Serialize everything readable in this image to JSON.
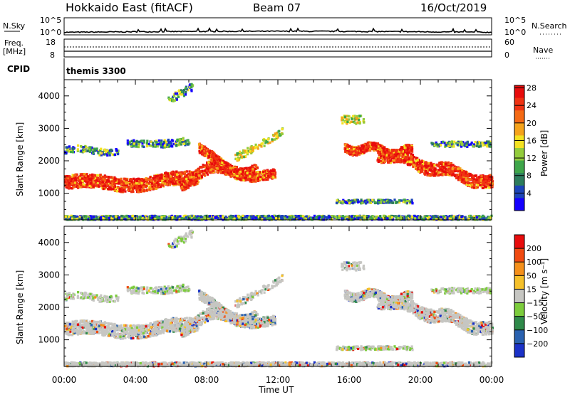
{
  "header": {
    "site": "Hokkaido East (fitACF)",
    "beam": "Beam 07",
    "date": "16/Oct/2019"
  },
  "noise_panel": {
    "left_label": "N.Sky",
    "right_label": "N.Search",
    "left_ticks": [
      "10^5",
      "10^0"
    ],
    "right_ticks": [
      "10^5",
      "10^0"
    ]
  },
  "freq_panel": {
    "left_label_line1": "Freq.",
    "left_label_line2": "[MHz]",
    "right_label": "Nave",
    "left_ticks": [
      "18",
      "8"
    ],
    "right_ticks": [
      "60",
      "0"
    ]
  },
  "cpid": {
    "label": "CPID",
    "value": "themis 3300"
  },
  "x_axis": {
    "label": "Time UT",
    "ticks": [
      "00:00",
      "04:00",
      "08:00",
      "12:00",
      "16:00",
      "20:00",
      "00:00"
    ]
  },
  "chart_data": [
    {
      "type": "heatmap",
      "name": "power",
      "xlabel": "Time UT",
      "ylabel": "Slant Range [km]",
      "xlim_hours": [
        0,
        24
      ],
      "ylim_km": [
        180,
        4500
      ],
      "y_ticks": [
        "1000",
        "2000",
        "3000",
        "4000"
      ],
      "colorbar": {
        "label": "Power [dB]",
        "ticks": [
          "4",
          "8",
          "12",
          "16",
          "20",
          "24",
          "28"
        ],
        "colors": [
          "#1400ff",
          "#1c44b8",
          "#2d7c5c",
          "#3fa64a",
          "#93cc3c",
          "#f4e221",
          "#f5a31b",
          "#f56a14",
          "#f03212",
          "#e80c0c"
        ]
      }
    },
    {
      "type": "heatmap",
      "name": "velocity",
      "xlabel": "Time UT",
      "ylabel": "Slant Range [km]",
      "xlim_hours": [
        0,
        24
      ],
      "ylim_km": [
        180,
        4500
      ],
      "y_ticks": [
        "1000",
        "2000",
        "3000",
        "4000"
      ],
      "colorbar": {
        "label": "Velocity [m s⁻¹]",
        "ticks": [
          "200",
          "100",
          "50",
          "15",
          "−15",
          "−50",
          "−100",
          "−200"
        ],
        "colors": [
          "#1b32c8",
          "#2a62b0",
          "#2f8a4a",
          "#7ccc3c",
          "#c6c6c2",
          "#f5c02a",
          "#f5901a",
          "#f04a10",
          "#e80c0c"
        ]
      }
    }
  ]
}
